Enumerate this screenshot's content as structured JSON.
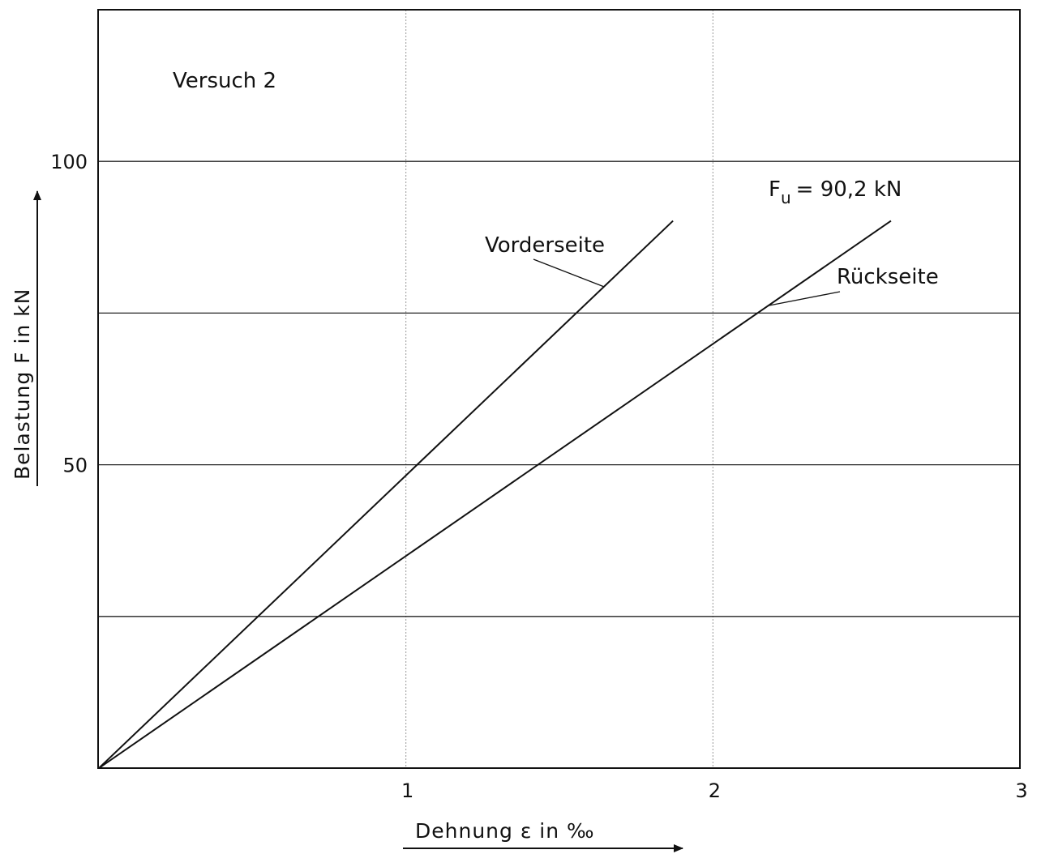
{
  "chart_data": {
    "type": "line",
    "title": "",
    "annotation_top_left": "Versuch 2",
    "ultimate_load_label": "F",
    "ultimate_load_subscript": "u",
    "ultimate_load_value": "= 90,2  kN",
    "xlabel": "Dehnung  ε  in  ‰",
    "ylabel": "Belastung  F  in kN",
    "xlim": [
      0,
      3
    ],
    "ylim": [
      0,
      125
    ],
    "x_ticks": [
      1,
      2,
      3
    ],
    "x_tick_labels": [
      "1",
      "2",
      "3"
    ],
    "y_ticks": [
      50,
      100
    ],
    "y_tick_labels": [
      "50",
      "100"
    ],
    "x_gridlines": [
      1,
      2,
      3
    ],
    "y_gridlines": [
      25,
      50,
      75,
      100
    ],
    "grid": true,
    "series": [
      {
        "name": "Vorderseite",
        "x": [
          0,
          1.87
        ],
        "y": [
          0,
          90.2
        ]
      },
      {
        "name": "Rückseite",
        "x": [
          0,
          2.58
        ],
        "y": [
          0,
          90.2
        ]
      }
    ]
  }
}
